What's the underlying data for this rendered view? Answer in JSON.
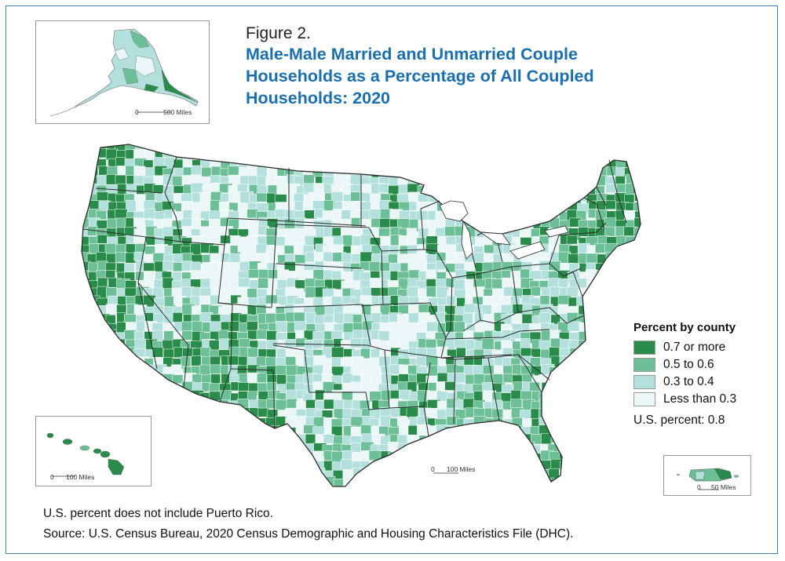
{
  "figure_label": "Figure 2.",
  "title": "Male-Male Married and Unmarried Couple Households as a Percentage of All Coupled Households: 2020",
  "legend": {
    "title": "Percent by county",
    "items": [
      {
        "label": "0.7 or more",
        "color": "#2a8c4a"
      },
      {
        "label": "0.5 to 0.6",
        "color": "#6dbf98"
      },
      {
        "label": "0.3 to 0.4",
        "color": "#b3e0dc"
      },
      {
        "label": "Less than 0.3",
        "color": "#ebf6f6"
      }
    ]
  },
  "us_percent": "U.S. percent: 0.8",
  "footnote": "U.S. percent does not include Puerto Rico.",
  "source": "Source: U.S. Census Bureau, 2020 Census Demographic and Housing Characteristics File (DHC).",
  "scales": {
    "alaska": {
      "zero": "0",
      "label": "500 Miles"
    },
    "hawaii": {
      "zero": "0",
      "label": "100 Miles"
    },
    "conus": {
      "zero": "0",
      "label": "100 Miles"
    },
    "puerto_rico": {
      "zero": "0",
      "label": "50 Miles"
    }
  }
}
